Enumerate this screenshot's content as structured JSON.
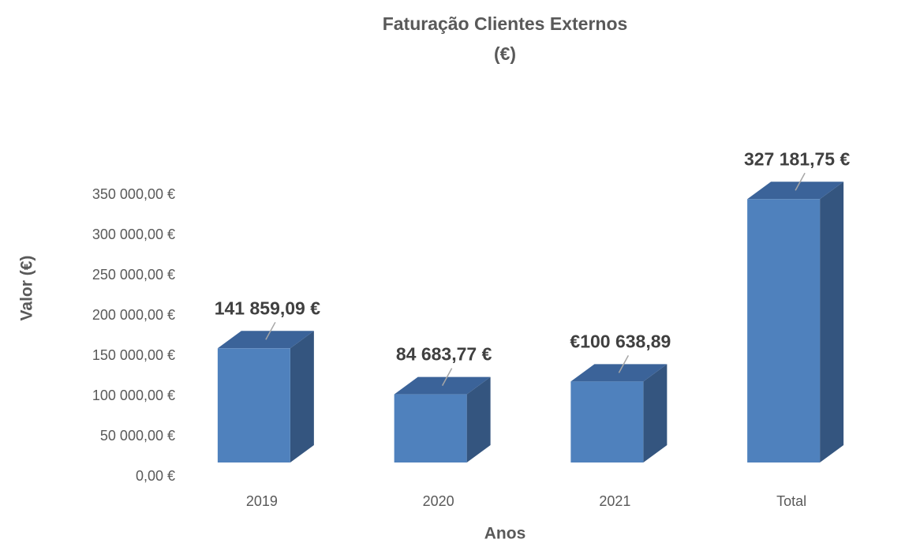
{
  "chart_data": {
    "type": "bar3d",
    "title": [
      "Faturação Clientes Externos",
      "(€)"
    ],
    "x_label": "Anos",
    "y_label": "Valor (€)",
    "categories": [
      "2019",
      "2020",
      "2021",
      "Total"
    ],
    "values": [
      141859.09,
      84683.77,
      100638.89,
      327181.75
    ],
    "value_labels": [
      "141 859,09 €",
      "84 683,77 €",
      "€100 638,89",
      "327 181,75 €"
    ],
    "color": "#4f81bd",
    "ylim": [
      0,
      350000
    ],
    "yticks": [
      {
        "value": 0,
        "label": "0,00 €"
      },
      {
        "value": 50000,
        "label": "50 000,00 €"
      },
      {
        "value": 100000,
        "label": "100 000,00 €"
      },
      {
        "value": 150000,
        "label": "150 000,00 €"
      },
      {
        "value": 200000,
        "label": "200 000,00 €"
      },
      {
        "value": 250000,
        "label": "250 000,00 €"
      },
      {
        "value": 300000,
        "label": "300 000,00 €"
      },
      {
        "value": 350000,
        "label": "350 000,00 €"
      }
    ],
    "grid": false
  }
}
